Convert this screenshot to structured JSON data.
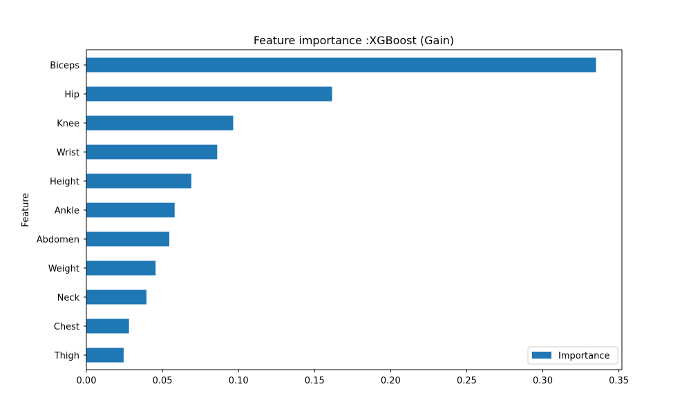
{
  "chart_data": {
    "type": "bar",
    "orientation": "horizontal",
    "title": "Feature importance :XGBoost (Gain)",
    "xlabel": "",
    "ylabel": "Feature",
    "categories": [
      "Biceps",
      "Hip",
      "Knee",
      "Wrist",
      "Height",
      "Ankle",
      "Abdomen",
      "Weight",
      "Neck",
      "Chest",
      "Thigh"
    ],
    "series": [
      {
        "name": "Importance",
        "color": "#1f77b4",
        "values": [
          0.335,
          0.1615,
          0.0965,
          0.086,
          0.069,
          0.058,
          0.0545,
          0.0455,
          0.0395,
          0.028,
          0.0245
        ]
      }
    ],
    "xlim": [
      0.0,
      0.352
    ],
    "xticks": [
      "0.00",
      "0.05",
      "0.10",
      "0.15",
      "0.20",
      "0.25",
      "0.30",
      "0.35"
    ],
    "grid": false,
    "legend_position": "lower-right"
  }
}
